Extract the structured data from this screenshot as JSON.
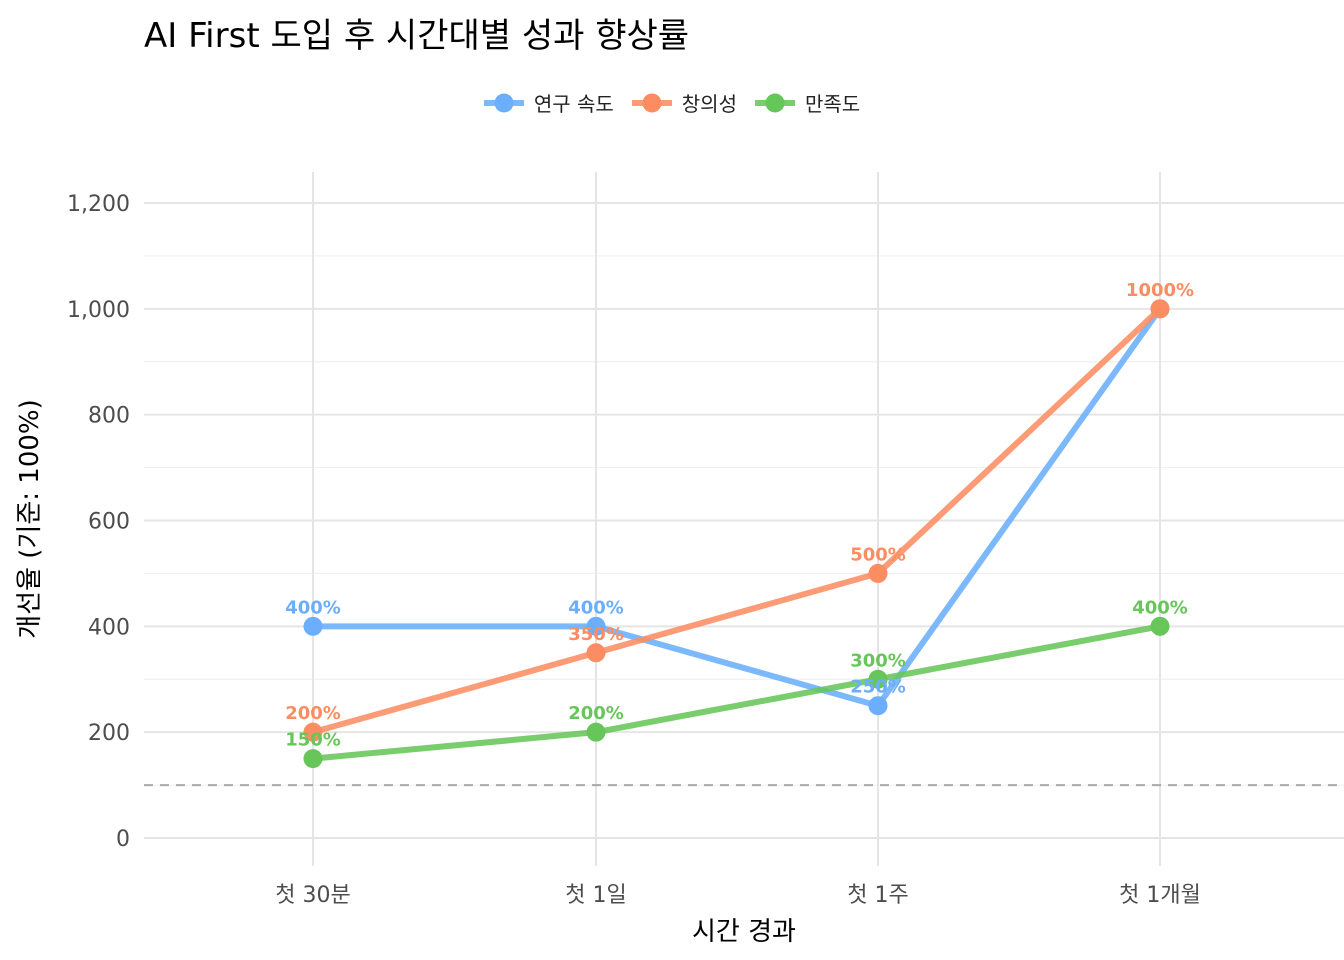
{
  "chart_data": {
    "type": "line",
    "title": "AI First 도입 후 시간대별 성과 향상률",
    "xlabel": "시간 경과",
    "ylabel": "개선율 (기준: 100%)",
    "categories": [
      "첫 30분",
      "첫 1일",
      "첫 1주",
      "첫 1개월"
    ],
    "ylim": [
      -60,
      1260
    ],
    "yticks": [
      0,
      200,
      400,
      600,
      800,
      1000,
      1200
    ],
    "ytick_labels": [
      "0",
      "200",
      "400",
      "600",
      "800",
      "1,000",
      "1,200"
    ],
    "reference_line": 100,
    "grid": true,
    "legend_position": "top",
    "series": [
      {
        "name": "연구 속도",
        "color": "#6aaefc",
        "values": [
          400,
          400,
          250,
          1000
        ],
        "labels": [
          "400%",
          "400%",
          "250%",
          ""
        ]
      },
      {
        "name": "창의성",
        "color": "#fc8d62",
        "values": [
          200,
          350,
          500,
          1000
        ],
        "labels": [
          "200%",
          "350%",
          "500%",
          "1000%"
        ]
      },
      {
        "name": "만족도",
        "color": "#66c659",
        "values": [
          150,
          200,
          300,
          400
        ],
        "labels": [
          "150%",
          "200%",
          "300%",
          "400%"
        ]
      }
    ]
  }
}
